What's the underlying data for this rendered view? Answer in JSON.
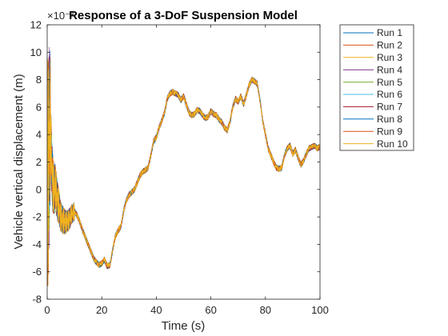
{
  "chart_data": {
    "type": "line",
    "title": "Response of a 3-DoF Suspension Model",
    "xlabel": "Time (s)",
    "ylabel": "Vehicle vertical displacement (m)",
    "exponent_label": "×10⁻³",
    "xlim": [
      0,
      100
    ],
    "ylim": [
      -8,
      12
    ],
    "xticks": [
      "0",
      "20",
      "40",
      "60",
      "80",
      "100"
    ],
    "yticks": [
      "-8",
      "-6",
      "-4",
      "-2",
      "0",
      "2",
      "4",
      "6",
      "8",
      "10",
      "12"
    ],
    "grid": false,
    "legend_position": "outside-top-right",
    "envelope": {
      "t": [
        0,
        0.5,
        1,
        1.5,
        2,
        2.5,
        3,
        3.5,
        4,
        4.5,
        5,
        6,
        7,
        8,
        9,
        10,
        11,
        12,
        13,
        14,
        15,
        16,
        17,
        18,
        19,
        20,
        21,
        22,
        23,
        24,
        25,
        26,
        27,
        28,
        29,
        30,
        31,
        32,
        33,
        34,
        35,
        36,
        37,
        38,
        39,
        40,
        41,
        42,
        43,
        44,
        45,
        46,
        47,
        48,
        49,
        50,
        51,
        52,
        53,
        54,
        55,
        56,
        57,
        58,
        59,
        60,
        61,
        62,
        63,
        64,
        65,
        66,
        67,
        68,
        69,
        70,
        71,
        72,
        73,
        74,
        75,
        76,
        77,
        78,
        79,
        80,
        81,
        82,
        83,
        84,
        85,
        86,
        87,
        88,
        89,
        90,
        91,
        92,
        93,
        94,
        95,
        96,
        97,
        98,
        99,
        100
      ],
      "y": [
        0,
        2.0,
        4.5,
        2.5,
        0.5,
        0.0,
        0.2,
        -0.5,
        -1.0,
        -1.5,
        -2.0,
        -2.3,
        -2.4,
        -2.2,
        -1.8,
        -1.6,
        -1.9,
        -2.4,
        -3.0,
        -3.5,
        -4.0,
        -4.5,
        -5.0,
        -5.3,
        -5.5,
        -5.4,
        -5.1,
        -5.6,
        -5.5,
        -4.4,
        -3.4,
        -3.0,
        -2.7,
        -1.6,
        -0.8,
        -0.4,
        -0.2,
        0.0,
        0.5,
        1.0,
        1.3,
        1.4,
        1.6,
        2.5,
        3.5,
        3.8,
        4.5,
        5.0,
        5.6,
        6.6,
        7.0,
        7.1,
        7.0,
        6.9,
        6.5,
        6.8,
        6.2,
        5.6,
        5.4,
        5.5,
        5.8,
        5.7,
        5.4,
        5.2,
        5.3,
        5.7,
        5.5,
        5.4,
        5.1,
        4.9,
        4.5,
        4.3,
        4.9,
        6.0,
        6.6,
        6.4,
        6.8,
        6.2,
        6.9,
        7.6,
        8.0,
        7.9,
        7.7,
        6.5,
        5.0,
        4.0,
        3.0,
        2.5,
        2.0,
        1.6,
        1.5,
        1.6,
        2.5,
        3.0,
        3.2,
        2.6,
        2.9,
        2.3,
        1.8,
        2.1,
        2.6,
        3.0,
        3.1,
        3.2,
        3.0,
        3.1
      ]
    },
    "transient": {
      "t_end": 10,
      "amplitude_max": 10.5,
      "amplitude_min_neg": -7.0
    },
    "series": [
      {
        "name": "Run 1",
        "color": "#0072BD"
      },
      {
        "name": "Run 2",
        "color": "#D95319"
      },
      {
        "name": "Run 3",
        "color": "#EDB120"
      },
      {
        "name": "Run 4",
        "color": "#7E2F8E"
      },
      {
        "name": "Run 5",
        "color": "#77AC30"
      },
      {
        "name": "Run 6",
        "color": "#4DBEEE"
      },
      {
        "name": "Run 7",
        "color": "#A2142F"
      },
      {
        "name": "Run 8",
        "color": "#0072BD"
      },
      {
        "name": "Run 9",
        "color": "#D95319"
      },
      {
        "name": "Run 10",
        "color": "#EDB120"
      }
    ]
  }
}
